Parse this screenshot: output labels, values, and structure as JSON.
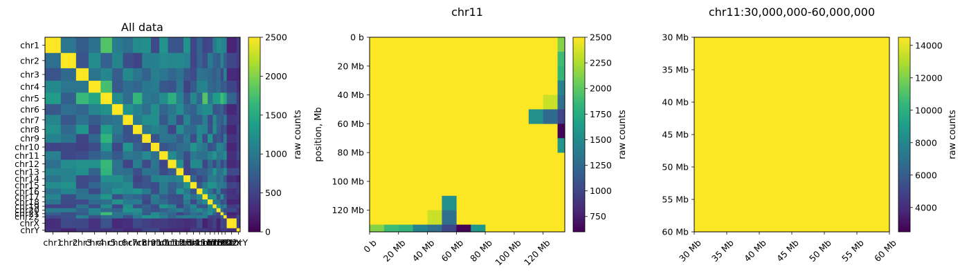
{
  "chart_data": [
    {
      "type": "heatmap",
      "title": "All data",
      "xlabel": "",
      "ylabel": "",
      "colormap": "viridis",
      "y_tick_labels": [
        "chr1",
        "chr2",
        "chr3",
        "chr4",
        "chr5",
        "chr6",
        "chr7",
        "chr8",
        "chr9",
        "chr10",
        "chr11",
        "chr12",
        "chr13",
        "chr14",
        "chr15",
        "chr16",
        "chr17",
        "chr18",
        "chr19",
        "chr20",
        "chr21",
        "chr22",
        "chrX",
        "chrY"
      ],
      "x_tick_labels": [
        "chr1",
        "chr2",
        "chr3",
        "chr4",
        "chr5",
        "chr6",
        "chr7",
        "chr8",
        "chr9",
        "chr10",
        "chr11",
        "chr12",
        "chr13",
        "chr14",
        "chr15",
        "chr16",
        "chr17",
        "chr18",
        "chr19",
        "chr20",
        "chr21",
        "chr22",
        "chrX",
        "chrY"
      ],
      "chrom_sizes_mb": [
        249,
        242,
        198,
        190,
        181,
        171,
        159,
        145,
        138,
        134,
        135,
        133,
        114,
        107,
        102,
        90,
        83,
        80,
        59,
        64,
        47,
        51,
        156,
        57
      ],
      "colorbar": {
        "label": "raw counts",
        "range": [
          0,
          2500
        ],
        "ticks": [
          0,
          500,
          1000,
          1500,
          2000,
          2500
        ]
      },
      "description_values": {
        "diagonal_blocks": 2500,
        "background_level": 900
      }
    },
    {
      "type": "heatmap",
      "title": "chr11",
      "ylabel": "position, Mb",
      "xlabel": "",
      "colormap": "viridis",
      "x_tick_labels": [
        "0 b",
        "20 Mb",
        "40 Mb",
        "60 Mb",
        "80 Mb",
        "100 Mb",
        "120 Mb"
      ],
      "y_tick_labels": [
        "0 b",
        "20 Mb",
        "40 Mb",
        "60 Mb",
        "80 Mb",
        "100 Mb",
        "120 Mb"
      ],
      "extent_mb": [
        0,
        135
      ],
      "bin_size_mb": 10,
      "colorbar": {
        "label": "raw counts",
        "range": [
          600,
          2500
        ],
        "ticks": [
          750,
          1000,
          1250,
          1500,
          1750,
          2000,
          2250,
          2500
        ]
      },
      "saturated_value": 2500,
      "cells": [
        {
          "row": 0,
          "col": 13,
          "value": 2150
        },
        {
          "row": 1,
          "col": 13,
          "value": 1900
        },
        {
          "row": 2,
          "col": 13,
          "value": 1850
        },
        {
          "row": 3,
          "col": 13,
          "value": 1450
        },
        {
          "row": 4,
          "col": 12,
          "value": 2350
        },
        {
          "row": 4,
          "col": 13,
          "value": 1300
        },
        {
          "row": 5,
          "col": 11,
          "value": 1550
        },
        {
          "row": 5,
          "col": 12,
          "value": 1250
        },
        {
          "row": 5,
          "col": 13,
          "value": 1000
        },
        {
          "row": 6,
          "col": 13,
          "value": 620
        },
        {
          "row": 7,
          "col": 13,
          "value": 1600
        },
        {
          "row": 11,
          "col": 5,
          "value": 1550
        },
        {
          "row": 12,
          "col": 4,
          "value": 2350
        },
        {
          "row": 12,
          "col": 5,
          "value": 1300
        },
        {
          "row": 13,
          "col": 0,
          "value": 2150
        },
        {
          "row": 13,
          "col": 1,
          "value": 1900
        },
        {
          "row": 13,
          "col": 2,
          "value": 1850
        },
        {
          "row": 13,
          "col": 3,
          "value": 1450
        },
        {
          "row": 13,
          "col": 4,
          "value": 1300
        },
        {
          "row": 13,
          "col": 5,
          "value": 1000
        },
        {
          "row": 13,
          "col": 6,
          "value": 620
        },
        {
          "row": 13,
          "col": 7,
          "value": 1600
        }
      ]
    },
    {
      "type": "heatmap",
      "title": "chr11:30,000,000-60,000,000",
      "xlabel": "",
      "ylabel": "",
      "colormap": "viridis",
      "x_tick_labels": [
        "30 Mb",
        "35 Mb",
        "40 Mb",
        "45 Mb",
        "50 Mb",
        "55 Mb",
        "60 Mb"
      ],
      "y_tick_labels": [
        "30 Mb",
        "35 Mb",
        "40 Mb",
        "45 Mb",
        "50 Mb",
        "55 Mb",
        "60 Mb"
      ],
      "extent_mb": [
        30,
        60
      ],
      "colorbar": {
        "label": "raw counts",
        "range": [
          2500,
          14500
        ],
        "ticks": [
          4000,
          6000,
          8000,
          10000,
          12000,
          14000
        ]
      },
      "fill_value": 14500
    }
  ],
  "colors": {
    "viridis": [
      "#440154",
      "#482878",
      "#3e4989",
      "#31688e",
      "#26828e",
      "#1f9e89",
      "#35b779",
      "#6ece58",
      "#b5de2b",
      "#fde725"
    ],
    "background": "#ffffff",
    "frame": "#000000"
  }
}
